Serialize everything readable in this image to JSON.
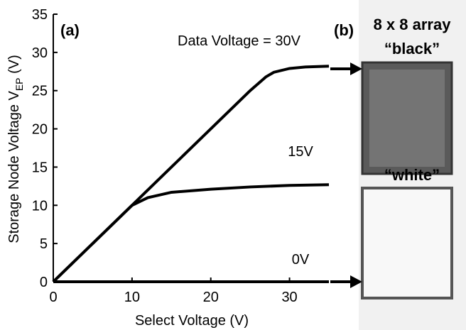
{
  "chart_data": {
    "type": "line",
    "panel_a": "(a)",
    "panel_b": "(b)",
    "array_title": "8 x 8 array",
    "black_label": "“black”",
    "white_label": "“white”",
    "xlabel": "Select Voltage (V)",
    "ylabel_main": "Storage Node Voltage V",
    "ylabel_sub": "EP",
    "ylabel_end": " (V)",
    "xlim": [
      0,
      35
    ],
    "ylim": [
      0,
      35
    ],
    "xticks": [
      0,
      10,
      20,
      30
    ],
    "yticks": [
      0,
      5,
      10,
      15,
      20,
      25,
      30,
      35
    ],
    "color": "#000000",
    "series": [
      {
        "name": "Data Voltage = 30V",
        "x": [
          0,
          5,
          10,
          15,
          20,
          25,
          27,
          28,
          30,
          32,
          35
        ],
        "values": [
          0,
          5,
          10,
          15,
          20,
          25,
          26.8,
          27.4,
          27.9,
          28.1,
          28.2
        ]
      },
      {
        "name": "15V",
        "x": [
          0,
          5,
          10,
          12,
          15,
          20,
          25,
          30,
          35
        ],
        "values": [
          0,
          5,
          10,
          11,
          11.7,
          12.1,
          12.4,
          12.6,
          12.7
        ]
      },
      {
        "name": "0V",
        "x": [
          0,
          35
        ],
        "values": [
          0,
          0
        ]
      }
    ]
  }
}
